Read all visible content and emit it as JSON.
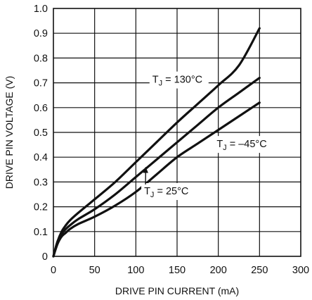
{
  "chart_data": {
    "type": "line",
    "xlabel": "DRIVE PIN CURRENT (mA)",
    "ylabel": "DRIVE PIN VOLTAGE (V)",
    "xlim": [
      0,
      300
    ],
    "ylim": [
      0,
      1.0
    ],
    "x_ticks": [
      "0",
      "50",
      "100",
      "150",
      "200",
      "250",
      "300"
    ],
    "y_ticks": [
      "0",
      "0.1",
      "0.2",
      "0.3",
      "0.4",
      "0.5",
      "0.6",
      "0.7",
      "0.8",
      "0.9",
      "1.0"
    ],
    "grid": true,
    "series": [
      {
        "name": "T_J = 130°C",
        "x": [
          0,
          5,
          10,
          15,
          20,
          30,
          50,
          75,
          100,
          125,
          150,
          175,
          200,
          225,
          250
        ],
        "y": [
          0,
          0.06,
          0.1,
          0.125,
          0.145,
          0.175,
          0.23,
          0.3,
          0.38,
          0.46,
          0.54,
          0.615,
          0.69,
          0.77,
          0.92
        ]
      },
      {
        "name": "T_J = –45°C",
        "x": [
          0,
          5,
          10,
          15,
          20,
          30,
          50,
          75,
          100,
          125,
          150,
          175,
          200,
          225,
          250
        ],
        "y": [
          0,
          0.06,
          0.09,
          0.11,
          0.125,
          0.15,
          0.19,
          0.25,
          0.32,
          0.39,
          0.46,
          0.53,
          0.6,
          0.66,
          0.72
        ]
      },
      {
        "name": "T_J = 25°C",
        "x": [
          0,
          5,
          10,
          15,
          20,
          30,
          50,
          75,
          100,
          125,
          150,
          175,
          200,
          225,
          250
        ],
        "y": [
          0,
          0.05,
          0.08,
          0.095,
          0.11,
          0.13,
          0.16,
          0.205,
          0.26,
          0.33,
          0.4,
          0.455,
          0.51,
          0.565,
          0.62
        ]
      }
    ],
    "annotations": [
      {
        "sub": "J",
        "rest": " = 130°C",
        "at": [
          120,
          0.7
        ],
        "target": "T_J = 130°C"
      },
      {
        "sub": "J",
        "rest": " = –45°C",
        "at": [
          198,
          0.44
        ],
        "target": "T_J = –45°C"
      },
      {
        "sub": "J",
        "rest": " = 25°C",
        "at": [
          110,
          0.25
        ],
        "target": "T_J = 25°C",
        "arrow_to": [
          112,
          0.36
        ]
      }
    ]
  }
}
